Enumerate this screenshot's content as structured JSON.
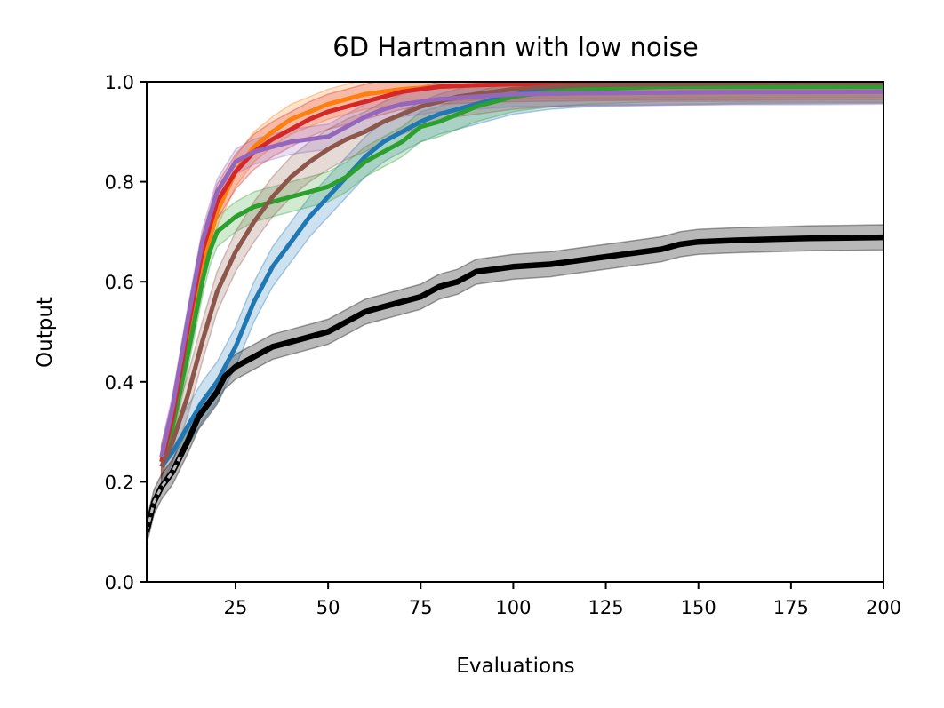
{
  "chart_data": {
    "type": "line",
    "title": "6D Hartmann with low noise",
    "xlabel": "Evaluations",
    "ylabel": "Output",
    "xlim": [
      1,
      200
    ],
    "ylim": [
      0.0,
      1.0
    ],
    "xticks": [
      25,
      50,
      75,
      100,
      125,
      150,
      175,
      200
    ],
    "yticks": [
      0.0,
      0.2,
      0.4,
      0.6,
      0.8,
      1.0
    ],
    "xtick_labels": [
      "25",
      "50",
      "75",
      "100",
      "125",
      "150",
      "175",
      "200"
    ],
    "ytick_labels": [
      "0.0",
      "0.2",
      "0.4",
      "0.6",
      "0.8",
      "1.0"
    ],
    "grid": false,
    "series": [
      {
        "name": "black",
        "color": "#000000",
        "band": 0.025,
        "x": [
          1,
          3,
          5,
          8,
          10,
          12,
          15,
          18,
          20,
          22,
          25,
          30,
          35,
          40,
          45,
          50,
          55,
          60,
          65,
          70,
          75,
          80,
          85,
          90,
          95,
          100,
          110,
          120,
          130,
          140,
          145,
          150,
          160,
          170,
          180,
          190,
          200
        ],
        "y": [
          0.1,
          0.16,
          0.19,
          0.22,
          0.25,
          0.28,
          0.33,
          0.36,
          0.38,
          0.41,
          0.43,
          0.45,
          0.47,
          0.48,
          0.49,
          0.5,
          0.52,
          0.54,
          0.55,
          0.56,
          0.57,
          0.59,
          0.6,
          0.62,
          0.625,
          0.63,
          0.635,
          0.645,
          0.655,
          0.665,
          0.675,
          0.68,
          0.683,
          0.685,
          0.687,
          0.688,
          0.689
        ]
      },
      {
        "name": "blue",
        "color": "#1f77b4",
        "band": 0.04,
        "x": [
          5,
          8,
          12,
          16,
          20,
          25,
          30,
          35,
          40,
          45,
          50,
          55,
          60,
          65,
          70,
          75,
          80,
          85,
          90,
          95,
          100,
          110,
          120,
          140,
          160,
          180,
          200
        ],
        "y": [
          0.23,
          0.26,
          0.31,
          0.36,
          0.4,
          0.47,
          0.56,
          0.63,
          0.68,
          0.73,
          0.77,
          0.81,
          0.85,
          0.88,
          0.9,
          0.92,
          0.935,
          0.945,
          0.955,
          0.965,
          0.975,
          0.985,
          0.99,
          0.993,
          0.995,
          0.996,
          0.997
        ]
      },
      {
        "name": "orange",
        "color": "#ff7f0e",
        "band": 0.03,
        "x": [
          5,
          8,
          12,
          16,
          20,
          25,
          30,
          35,
          40,
          45,
          50,
          55,
          60,
          70,
          80,
          90,
          100,
          120,
          140,
          160,
          180,
          200
        ],
        "y": [
          0.24,
          0.32,
          0.47,
          0.63,
          0.74,
          0.82,
          0.87,
          0.9,
          0.925,
          0.94,
          0.955,
          0.965,
          0.975,
          0.985,
          0.99,
          0.993,
          0.995,
          0.997,
          0.998,
          0.998,
          0.999,
          0.999
        ]
      },
      {
        "name": "green",
        "color": "#2ca02c",
        "band": 0.03,
        "x": [
          5,
          8,
          12,
          16,
          18,
          20,
          25,
          30,
          35,
          40,
          45,
          50,
          55,
          60,
          65,
          70,
          75,
          80,
          85,
          90,
          95,
          100,
          110,
          120,
          140,
          160,
          180,
          200
        ],
        "y": [
          0.24,
          0.31,
          0.45,
          0.6,
          0.66,
          0.7,
          0.73,
          0.75,
          0.76,
          0.77,
          0.78,
          0.79,
          0.81,
          0.84,
          0.86,
          0.88,
          0.91,
          0.92,
          0.935,
          0.95,
          0.96,
          0.97,
          0.98,
          0.985,
          0.99,
          0.99,
          0.99,
          0.99
        ]
      },
      {
        "name": "red",
        "color": "#d62728",
        "band": 0.035,
        "x": [
          5,
          8,
          12,
          16,
          20,
          25,
          30,
          35,
          40,
          45,
          50,
          55,
          60,
          65,
          70,
          80,
          90,
          100,
          120,
          140,
          160,
          180,
          200
        ],
        "y": [
          0.24,
          0.33,
          0.5,
          0.66,
          0.76,
          0.82,
          0.86,
          0.885,
          0.905,
          0.925,
          0.94,
          0.95,
          0.96,
          0.97,
          0.98,
          0.99,
          0.993,
          0.995,
          0.997,
          0.998,
          0.998,
          0.999,
          0.999
        ]
      },
      {
        "name": "purple",
        "color": "#9467bd",
        "band": 0.025,
        "x": [
          5,
          8,
          12,
          16,
          20,
          25,
          30,
          35,
          40,
          45,
          50,
          55,
          60,
          65,
          70,
          80,
          90,
          100,
          120,
          140,
          160,
          180,
          200
        ],
        "y": [
          0.25,
          0.35,
          0.52,
          0.68,
          0.78,
          0.84,
          0.86,
          0.87,
          0.88,
          0.885,
          0.89,
          0.91,
          0.93,
          0.945,
          0.955,
          0.965,
          0.97,
          0.975,
          0.977,
          0.978,
          0.979,
          0.979,
          0.98
        ]
      },
      {
        "name": "brown",
        "color": "#8c564b",
        "band": 0.04,
        "x": [
          5,
          8,
          12,
          16,
          20,
          25,
          30,
          35,
          40,
          45,
          50,
          55,
          60,
          65,
          70,
          75,
          80,
          85,
          90,
          100,
          110,
          120,
          140,
          160,
          180,
          200
        ],
        "y": [
          0.23,
          0.28,
          0.37,
          0.48,
          0.58,
          0.66,
          0.72,
          0.77,
          0.81,
          0.84,
          0.865,
          0.885,
          0.9,
          0.92,
          0.935,
          0.95,
          0.96,
          0.97,
          0.975,
          0.985,
          0.99,
          0.993,
          0.995,
          0.997,
          0.998,
          0.998
        ]
      }
    ]
  }
}
